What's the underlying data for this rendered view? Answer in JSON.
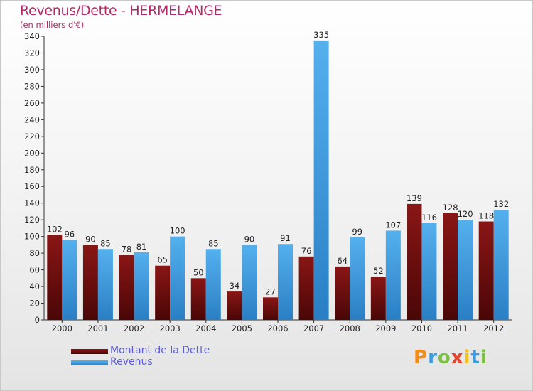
{
  "header": {
    "title": "Revenus/Dette - HERMELANGE",
    "subtitle": "(en milliers d'€)"
  },
  "legend": {
    "dette_label": "Montant de la Dette",
    "revenus_label": "Revenus"
  },
  "logo": {
    "text": "Proxiti"
  },
  "colors": {
    "dette": "#7a1010",
    "revenus": "#3a9be0"
  },
  "chart_data": {
    "type": "bar",
    "categories": [
      "2000",
      "2001",
      "2002",
      "2003",
      "2004",
      "2005",
      "2006",
      "2007",
      "2008",
      "2009",
      "2010",
      "2011",
      "2012"
    ],
    "series": [
      {
        "name": "Montant de la Dette",
        "values": [
          102,
          90,
          78,
          65,
          50,
          34,
          27,
          76,
          64,
          52,
          139,
          128,
          118
        ]
      },
      {
        "name": "Revenus",
        "values": [
          96,
          85,
          81,
          100,
          85,
          90,
          91,
          335,
          99,
          107,
          116,
          120,
          132
        ]
      }
    ],
    "yticks": [
      0,
      20,
      40,
      60,
      80,
      100,
      120,
      140,
      160,
      180,
      200,
      220,
      240,
      260,
      280,
      300,
      320,
      340
    ],
    "ylim": [
      0,
      340
    ],
    "grid": false
  }
}
